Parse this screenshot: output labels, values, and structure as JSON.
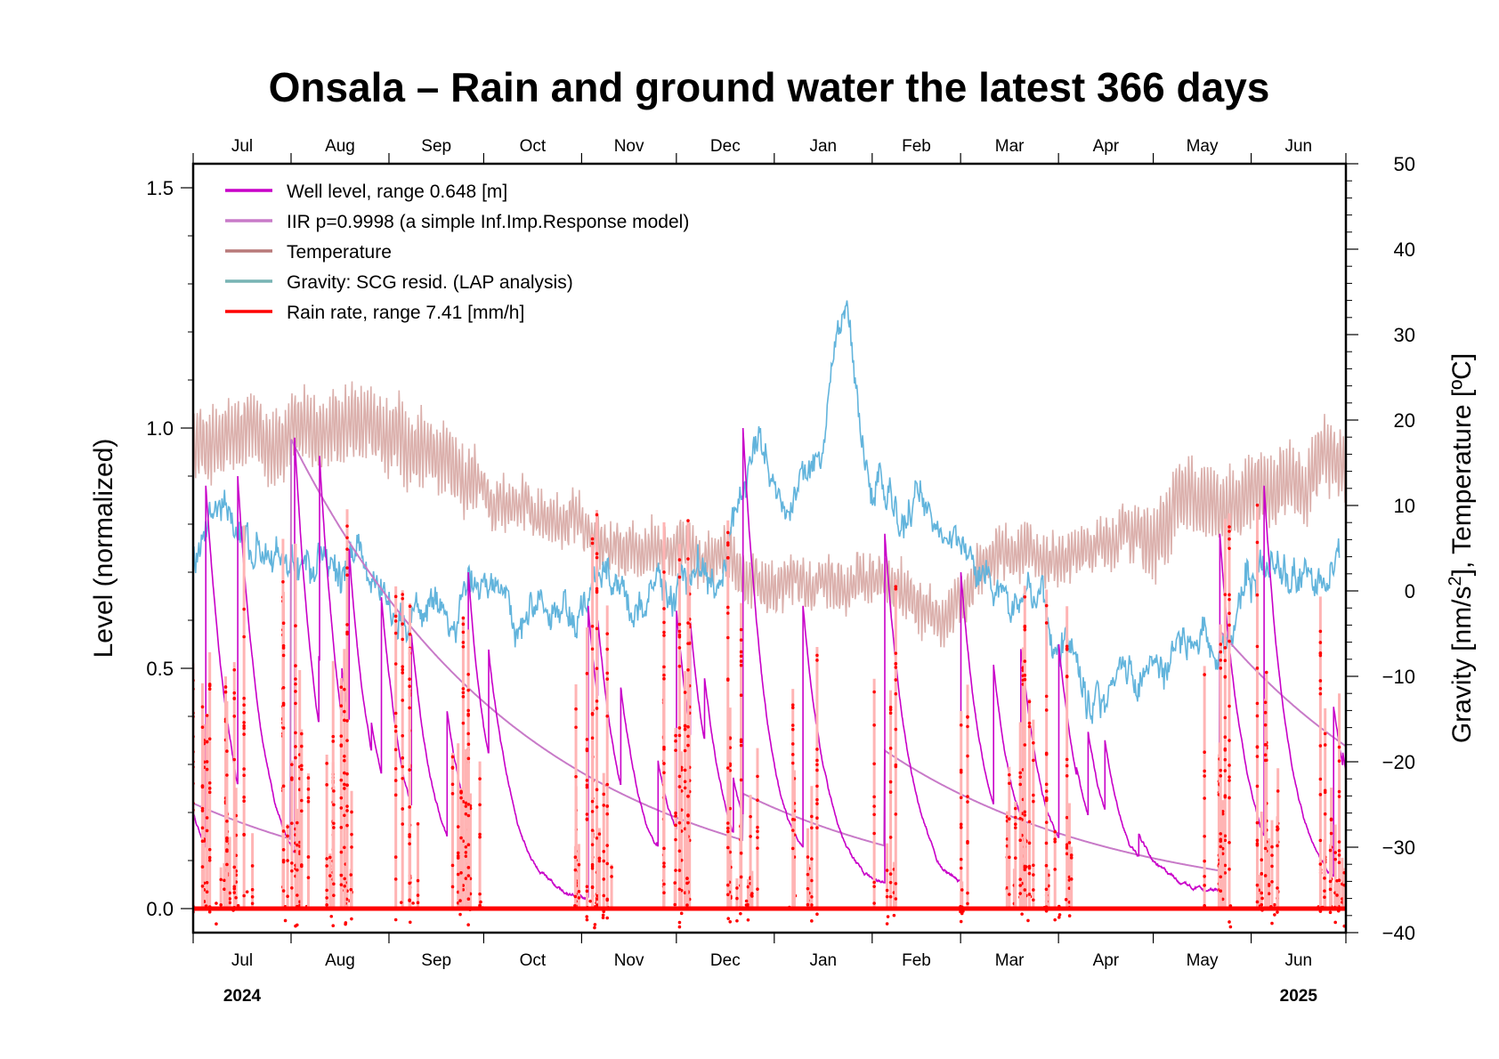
{
  "chart_data": {
    "type": "line",
    "title": "Onsala – Rain and ground water the latest 366 days",
    "period_days": 366,
    "x_axis": {
      "type": "time",
      "start": "2024-07-01",
      "end": "2025-07-01",
      "month_ticks": [
        "Jul",
        "Aug",
        "Sep",
        "Oct",
        "Nov",
        "Dec",
        "Jan",
        "Feb",
        "Mar",
        "Apr",
        "May",
        "Jun"
      ],
      "year_labels": [
        {
          "label": "2024",
          "month": "Jul"
        },
        {
          "label": "2025",
          "month": "Jun"
        }
      ]
    },
    "y_left": {
      "label": "Level (normalized)",
      "ylim": [
        -0.05,
        1.55
      ],
      "ticks": [
        "0.0",
        "0.5",
        "1.0",
        "1.5"
      ],
      "tick_values": [
        0.0,
        0.5,
        1.0,
        1.5
      ],
      "minor_step": 0.1
    },
    "y_right": {
      "label_prefix": "Gravity [nm/s",
      "label_sup": "2",
      "label_suffix": "], Temperature [ºC]",
      "ylim": [
        -40,
        50
      ],
      "ticks": [
        "−40",
        "−30",
        "−20",
        "−10",
        "0",
        "10",
        "20",
        "30",
        "40",
        "50"
      ],
      "tick_values": [
        -40,
        -30,
        -20,
        -10,
        0,
        10,
        20,
        30,
        40,
        50
      ],
      "minor_step": 2
    },
    "legend": {
      "placement": "top-left",
      "entries": [
        {
          "label": "Well level, range 0.648 [m]",
          "color": "#c800c8",
          "key": "well"
        },
        {
          "label": "IIR p=0.9998 (a simple Inf.Imp.Response model)",
          "color": "#c87ac8",
          "key": "iir"
        },
        {
          "label": "Temperature",
          "color": "#b87a7a",
          "key": "temp"
        },
        {
          "label": "Gravity: SCG resid. (LAP analysis)",
          "color": "#78b4b4",
          "key": "gravity"
        },
        {
          "label": "Rain rate, range 7.41 [mm/h]",
          "color": "#ff0000",
          "key": "rain"
        }
      ]
    },
    "series": [
      {
        "name": "Temperature",
        "axis": "right",
        "color": "#dbb0ac",
        "unit": "degC",
        "monthly_mean_approx": {
          "x": [
            "Jul",
            "Aug",
            "Sep",
            "Oct",
            "Nov",
            "Dec",
            "Jan",
            "Feb",
            "Mar",
            "Apr",
            "May",
            "Jun"
          ],
          "values": [
            17,
            18,
            14,
            10,
            6,
            3,
            1,
            0,
            3,
            6,
            11,
            15
          ]
        }
      },
      {
        "name": "Gravity: SCG resid. (LAP analysis)",
        "axis": "right",
        "color": "#62b4dc",
        "unit": "nm/s^2",
        "monthly_mean_approx": {
          "x": [
            "Jul",
            "Aug",
            "Sep",
            "Oct",
            "Nov",
            "Dec",
            "Jan",
            "Feb",
            "Mar",
            "Apr",
            "May",
            "Jun"
          ],
          "values": [
            4,
            2,
            -3,
            0,
            0,
            2,
            14,
            9,
            0,
            -8,
            -5,
            3
          ]
        },
        "peaks": [
          {
            "date": "2025-01-23",
            "value": 31
          },
          {
            "date": "2024-12-27",
            "value": 22
          }
        ]
      },
      {
        "name": "Well level",
        "axis": "left",
        "color": "#c800c8",
        "range_m": 0.648,
        "event_peaks": [
          {
            "date": "2024-07-05",
            "value": 0.88
          },
          {
            "date": "2024-07-15",
            "value": 0.9
          },
          {
            "date": "2024-08-02",
            "value": 0.98
          },
          {
            "date": "2024-08-17",
            "value": 0.5
          },
          {
            "date": "2024-09-08",
            "value": 0.57
          },
          {
            "date": "2024-09-26",
            "value": 0.7
          },
          {
            "date": "2024-11-03",
            "value": 0.63
          },
          {
            "date": "2024-11-06",
            "value": 0.6
          },
          {
            "date": "2024-12-01",
            "value": 0.62
          },
          {
            "date": "2024-12-22",
            "value": 1.0
          },
          {
            "date": "2025-01-10",
            "value": 0.63
          },
          {
            "date": "2025-02-05",
            "value": 0.78
          },
          {
            "date": "2025-03-01",
            "value": 0.7
          },
          {
            "date": "2025-03-20",
            "value": 0.54
          },
          {
            "date": "2025-04-01",
            "value": 0.55
          },
          {
            "date": "2025-05-22",
            "value": 0.78
          },
          {
            "date": "2025-06-05",
            "value": 0.88
          },
          {
            "date": "2025-06-27",
            "value": 0.42
          }
        ]
      },
      {
        "name": "IIR p=0.9998",
        "axis": "left",
        "color": "#c87ac8",
        "event_peaks": [
          {
            "date": "2024-08-01",
            "value": 0.98
          },
          {
            "date": "2024-09-07",
            "value": 0.57
          },
          {
            "date": "2024-10-03",
            "value": 0.29
          },
          {
            "date": "2024-11-02",
            "value": 0.26
          },
          {
            "date": "2024-12-22",
            "value": 0.24
          },
          {
            "date": "2025-02-05",
            "value": 0.33
          },
          {
            "date": "2025-05-22",
            "value": 0.58
          }
        ]
      },
      {
        "name": "Rain rate",
        "axis": "left",
        "color": "#ff0000",
        "range_mm_h": 7.41,
        "max_normalized": 0.85
      }
    ]
  }
}
